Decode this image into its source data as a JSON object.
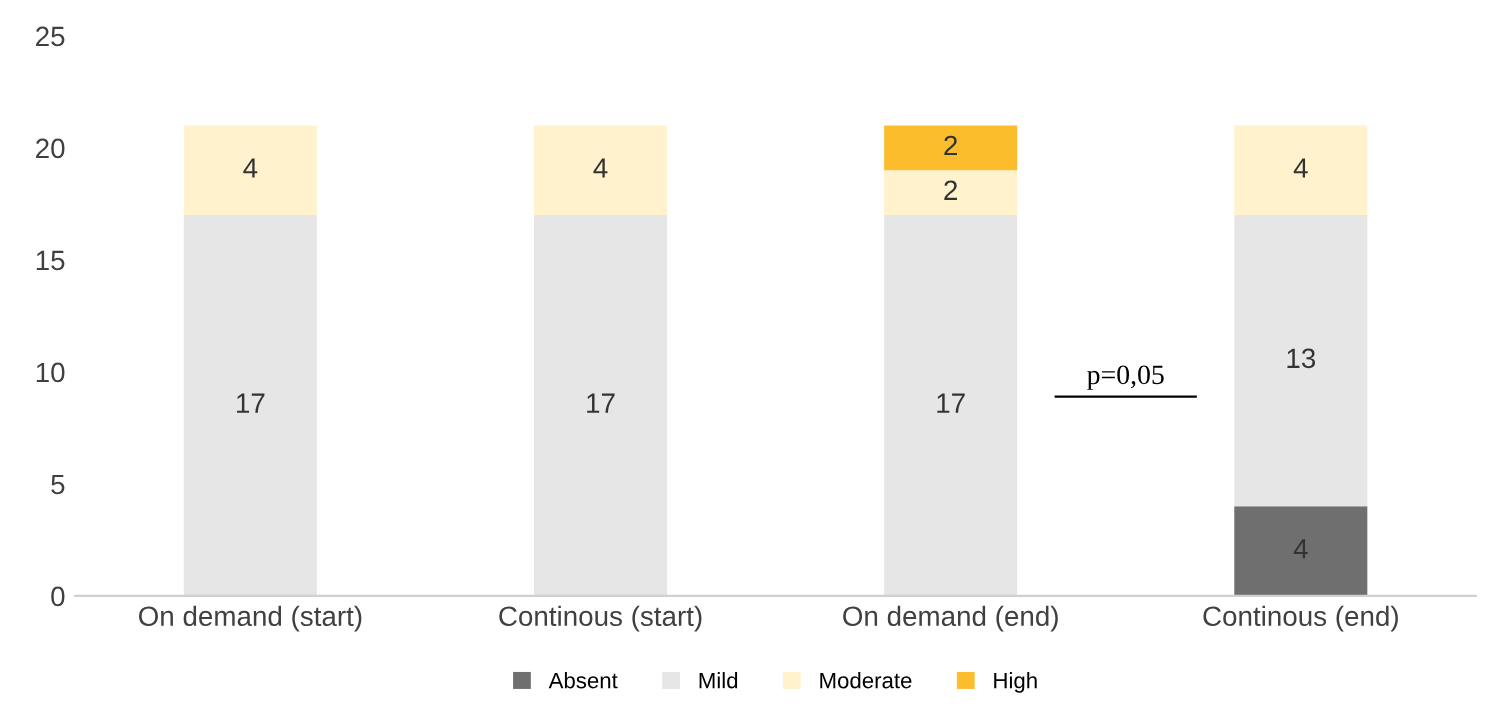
{
  "chart_data": {
    "type": "bar",
    "stacked": true,
    "categories": [
      "On demand (start)",
      "Continous (start)",
      "On demand (end)",
      "Continous (end)"
    ],
    "series": [
      {
        "name": "Absent",
        "color": "#6f6f6f",
        "values": [
          0,
          0,
          0,
          4
        ],
        "value_labels": [
          null,
          null,
          null,
          "4"
        ]
      },
      {
        "name": "Mild",
        "color": "#e6e6e6",
        "values": [
          17,
          17,
          17,
          13
        ],
        "value_labels": [
          "17",
          "17",
          "17",
          "13"
        ]
      },
      {
        "name": "Moderate",
        "color": "#fff2cc",
        "values": [
          4,
          4,
          2,
          4
        ],
        "value_labels": [
          "4",
          "4",
          "2",
          "4"
        ]
      },
      {
        "name": "High",
        "color": "#fbbd2b",
        "values": [
          0,
          0,
          2,
          0
        ],
        "value_labels": [
          null,
          null,
          "2",
          null
        ]
      }
    ],
    "ylim": [
      0,
      25
    ],
    "yticks": [
      0,
      5,
      10,
      15,
      20,
      25
    ],
    "grid": false,
    "legend": "bottom",
    "annotations": [
      "p=0,05"
    ]
  }
}
